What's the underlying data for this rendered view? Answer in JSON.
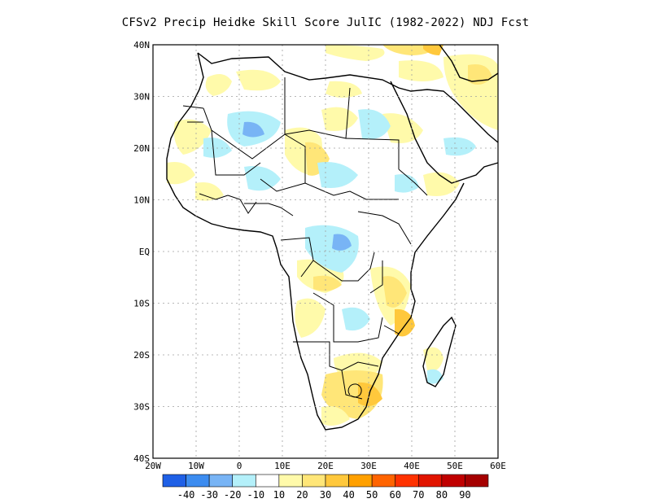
{
  "title": "CFSv2 Precip Heidke Skill Score JulIC (1982-2022) NDJ Fcst",
  "lat_labels": [
    "40N",
    "30N",
    "20N",
    "10N",
    "EQ",
    "10S",
    "20S",
    "30S",
    "40S"
  ],
  "lon_labels": [
    "20W",
    "10W",
    "0",
    "10E",
    "20E",
    "30E",
    "40E",
    "50E",
    "60E"
  ],
  "colorbar": {
    "colors": [
      "#1f60e6",
      "#3c8cf0",
      "#78b4f5",
      "#b4f0fa",
      "#ffffff",
      "#fffaaa",
      "#ffe678",
      "#ffc83c",
      "#ffa000",
      "#ff6400",
      "#ff3200",
      "#e11400",
      "#c00000",
      "#a50000"
    ],
    "labels": [
      "-40",
      "-30",
      "-20",
      "-10",
      "10",
      "20",
      "30",
      "40",
      "50",
      "60",
      "70",
      "80",
      "90"
    ]
  },
  "legend_colors": {
    "coast": "#000000",
    "grid": "#a0a0a0"
  }
}
